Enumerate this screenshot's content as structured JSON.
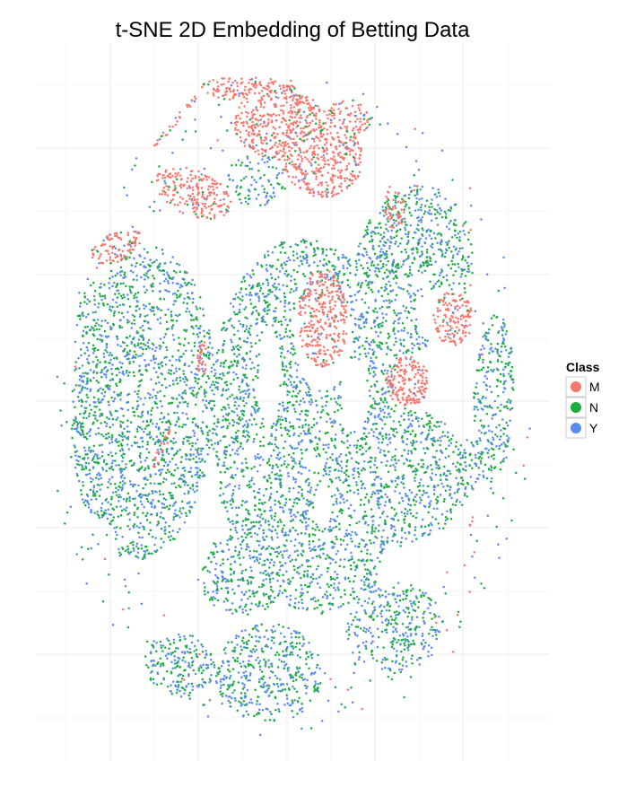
{
  "chart_data": {
    "type": "scatter",
    "title": "t-SNE 2D Embedding of Betting Data",
    "xlabel": "",
    "ylabel": "",
    "grid": true,
    "axis_ticks": false,
    "legend": {
      "title": "Class",
      "placement": "right",
      "entries": [
        "M",
        "N",
        "Y"
      ]
    },
    "series": [
      {
        "name": "M",
        "color": "#F8766D"
      },
      {
        "name": "N",
        "color": "#1AAF3C"
      },
      {
        "name": "Y",
        "color": "#5A8CF0"
      }
    ]
  }
}
